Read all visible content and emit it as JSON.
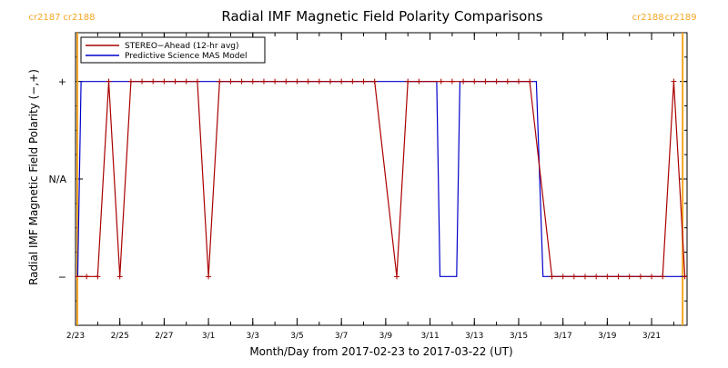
{
  "chart_data": {
    "type": "line",
    "title": "Radial IMF Magnetic Field Polarity Comparisons",
    "xlabel": "Month/Day from 2017-02-23 to 2017-03-22 (UT)",
    "ylabel": "Radial IMF Magnetic Field Polarity (−,+)",
    "x_unit": "days",
    "xlim": [
      0,
      27.6
    ],
    "ylim": [
      -1.5,
      1.5
    ],
    "y_ticks": [
      {
        "value": 1,
        "label": "+"
      },
      {
        "value": 0,
        "label": "N/A"
      },
      {
        "value": -1,
        "label": "−"
      }
    ],
    "x_ticks": [
      {
        "value": 0,
        "label": "2/23"
      },
      {
        "value": 2,
        "label": "2/25"
      },
      {
        "value": 4,
        "label": "2/27"
      },
      {
        "value": 6,
        "label": "3/1"
      },
      {
        "value": 8,
        "label": "3/3"
      },
      {
        "value": 10,
        "label": "3/5"
      },
      {
        "value": 12,
        "label": "3/7"
      },
      {
        "value": 14,
        "label": "3/9"
      },
      {
        "value": 16,
        "label": "3/11"
      },
      {
        "value": 18,
        "label": "3/13"
      },
      {
        "value": 20,
        "label": "3/15"
      },
      {
        "value": 22,
        "label": "3/17"
      },
      {
        "value": 24,
        "label": "3/19"
      },
      {
        "value": 26,
        "label": "3/21"
      }
    ],
    "carrington_markers": [
      {
        "x": 0.08,
        "labels": [
          "cr2187",
          "cr2188"
        ]
      },
      {
        "x": 27.4,
        "labels": [
          "cr2188",
          "cr2189"
        ]
      }
    ],
    "marker_color": "#f5a623",
    "series": [
      {
        "name": "STEREO−Ahead (12-hr avg)",
        "color": "#aa0000",
        "marker": "plus",
        "points": [
          [
            0,
            -1
          ],
          [
            0.5,
            -1
          ],
          [
            1,
            -1
          ],
          [
            1.5,
            1
          ],
          [
            2,
            -1
          ],
          [
            2.5,
            1
          ],
          [
            3,
            1
          ],
          [
            3.5,
            1
          ],
          [
            4,
            1
          ],
          [
            4.5,
            1
          ],
          [
            5,
            1
          ],
          [
            5.5,
            1
          ],
          [
            6,
            -1
          ],
          [
            6.5,
            1
          ],
          [
            7,
            1
          ],
          [
            7.5,
            1
          ],
          [
            8,
            1
          ],
          [
            8.5,
            1
          ],
          [
            9,
            1
          ],
          [
            9.5,
            1
          ],
          [
            10,
            1
          ],
          [
            10.5,
            1
          ],
          [
            11,
            1
          ],
          [
            11.5,
            1
          ],
          [
            12,
            1
          ],
          [
            12.5,
            1
          ],
          [
            13,
            1
          ],
          [
            13.5,
            1
          ],
          [
            14.5,
            -1
          ],
          [
            15,
            1
          ],
          [
            15.5,
            1
          ],
          [
            16.5,
            1
          ],
          [
            17,
            1
          ],
          [
            17.5,
            1
          ],
          [
            18,
            1
          ],
          [
            18.5,
            1
          ],
          [
            19,
            1
          ],
          [
            19.5,
            1
          ],
          [
            20,
            1
          ],
          [
            20.5,
            1
          ],
          [
            21.5,
            -1
          ],
          [
            22,
            -1
          ],
          [
            22.5,
            -1
          ],
          [
            23,
            -1
          ],
          [
            23.5,
            -1
          ],
          [
            24,
            -1
          ],
          [
            24.5,
            -1
          ],
          [
            25,
            -1
          ],
          [
            25.5,
            -1
          ],
          [
            26,
            -1
          ],
          [
            26.5,
            -1
          ],
          [
            27,
            1
          ],
          [
            27.5,
            -1
          ],
          [
            28,
            -1
          ]
        ]
      },
      {
        "name": "Predictive Science MAS Model",
        "color": "#0000cc",
        "marker": "none",
        "points": [
          [
            0.1,
            -1
          ],
          [
            0.25,
            1
          ],
          [
            16.3,
            1
          ],
          [
            16.45,
            -1
          ],
          [
            17.2,
            -1
          ],
          [
            17.35,
            1
          ],
          [
            20.8,
            1
          ],
          [
            21.1,
            -1
          ],
          [
            27.5,
            -1
          ]
        ]
      }
    ],
    "legend_position": "top-left"
  }
}
